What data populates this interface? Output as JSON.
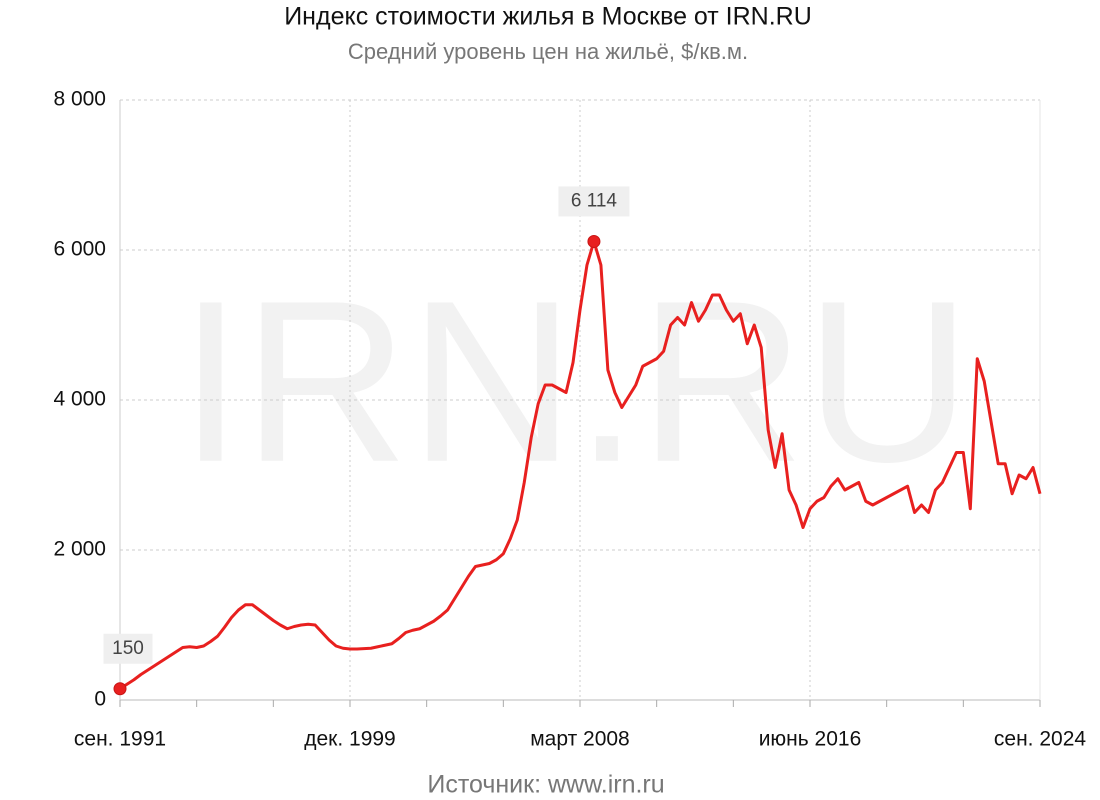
{
  "chart_data": {
    "type": "line",
    "title": "Индекс стоимости жилья в Москве от IRN.RU",
    "subtitle": "Средний уровень цен на жильё, $/кв.м.",
    "source": "Источник:  www.irn.ru",
    "watermark": "IRN.RU",
    "color": "#e8201f",
    "grid": true,
    "categories": [
      "сен. 1991",
      null,
      null,
      null,
      null,
      null,
      null,
      null,
      null,
      null,
      null,
      null,
      null,
      null,
      null,
      null,
      null,
      null,
      null,
      null,
      null,
      null,
      null,
      null,
      null,
      null,
      null,
      null,
      null,
      null,
      null,
      null,
      null,
      "дек. 1999",
      null,
      null,
      null,
      null,
      null,
      null,
      null,
      null,
      null,
      null,
      null,
      null,
      null,
      null,
      null,
      null,
      null,
      null,
      null,
      null,
      null,
      null,
      null,
      null,
      null,
      null,
      null,
      null,
      null,
      null,
      null,
      null,
      "март 2008",
      null,
      null,
      null,
      null,
      null,
      null,
      null,
      null,
      null,
      null,
      null,
      null,
      null,
      null,
      null,
      null,
      null,
      null,
      null,
      null,
      null,
      null,
      null,
      null,
      null,
      null,
      null,
      null,
      null,
      null,
      null,
      null,
      "июнь 2016",
      null,
      null,
      null,
      null,
      null,
      null,
      null,
      null,
      null,
      null,
      null,
      null,
      null,
      null,
      null,
      null,
      null,
      null,
      null,
      null,
      null,
      null,
      null,
      null,
      null,
      null,
      null,
      null,
      null,
      null,
      null,
      null,
      "сен. 2024"
    ],
    "values": [
      150,
      210,
      270,
      340,
      400,
      460,
      520,
      580,
      640,
      700,
      710,
      700,
      720,
      780,
      850,
      970,
      1100,
      1200,
      1270,
      1270,
      1200,
      1130,
      1060,
      1000,
      950,
      980,
      1000,
      1010,
      1000,
      900,
      800,
      720,
      690,
      680,
      680,
      685,
      690,
      710,
      730,
      750,
      820,
      900,
      930,
      950,
      1000,
      1050,
      1120,
      1200,
      1350,
      1500,
      1650,
      1780,
      1800,
      1820,
      1870,
      1950,
      2150,
      2400,
      2900,
      3500,
      3950,
      4200,
      4200,
      4150,
      4100,
      4500,
      5200,
      5800,
      6114,
      5800,
      4400,
      4100,
      3900,
      4050,
      4200,
      4450,
      4500,
      4550,
      4650,
      5000,
      5100,
      5000,
      5300,
      5050,
      5200,
      5400,
      5400,
      5200,
      5050,
      5150,
      4750,
      5000,
      4700,
      3600,
      3100,
      3550,
      2800,
      2600,
      2300,
      2550,
      2650,
      2700,
      2850,
      2950,
      2800,
      2850,
      2900,
      2650,
      2600,
      2650,
      2700,
      2750,
      2800,
      2850,
      2500,
      2600,
      2500,
      2800,
      2900,
      3100,
      3300,
      3300,
      2550,
      4550,
      4250,
      3700,
      3150,
      3150,
      2750,
      3000,
      2950,
      3100,
      2750
    ],
    "value_labels": [
      "150",
      null,
      null,
      null,
      null,
      null,
      null,
      null,
      null,
      null,
      null,
      null,
      null,
      null,
      null,
      null,
      null,
      null,
      null,
      null,
      null,
      null,
      null,
      null,
      null,
      null,
      null,
      null,
      null,
      null,
      null,
      null,
      null,
      null,
      null,
      null,
      null,
      null,
      null,
      null,
      null,
      null,
      null,
      null,
      null,
      null,
      null,
      null,
      null,
      null,
      null,
      null,
      null,
      null,
      null,
      null,
      null,
      null,
      null,
      null,
      null,
      null,
      null,
      null,
      null,
      null,
      null,
      null,
      "6 114",
      null,
      null,
      null,
      null,
      null,
      null,
      null,
      null,
      null,
      null,
      null,
      null,
      null,
      null,
      null,
      null,
      null,
      null,
      null,
      null,
      null,
      null,
      null,
      null,
      null,
      null,
      null,
      null,
      null,
      null,
      null,
      null,
      null,
      null,
      null,
      null,
      null,
      null,
      null,
      null,
      null,
      null,
      null,
      null,
      null,
      null,
      null,
      null,
      null,
      null,
      null,
      null,
      null,
      null,
      null,
      null,
      null,
      null,
      null,
      null,
      null,
      null,
      null,
      null
    ],
    "ylim": [
      0,
      8000
    ],
    "yticks": [
      0,
      {
        "value": 2000,
        "label": "2 000"
      },
      {
        "value": 4000,
        "label": "4 000"
      },
      {
        "value": 6000,
        "label": "6 000"
      },
      {
        "value": 8000,
        "label": "8 000"
      }
    ]
  }
}
